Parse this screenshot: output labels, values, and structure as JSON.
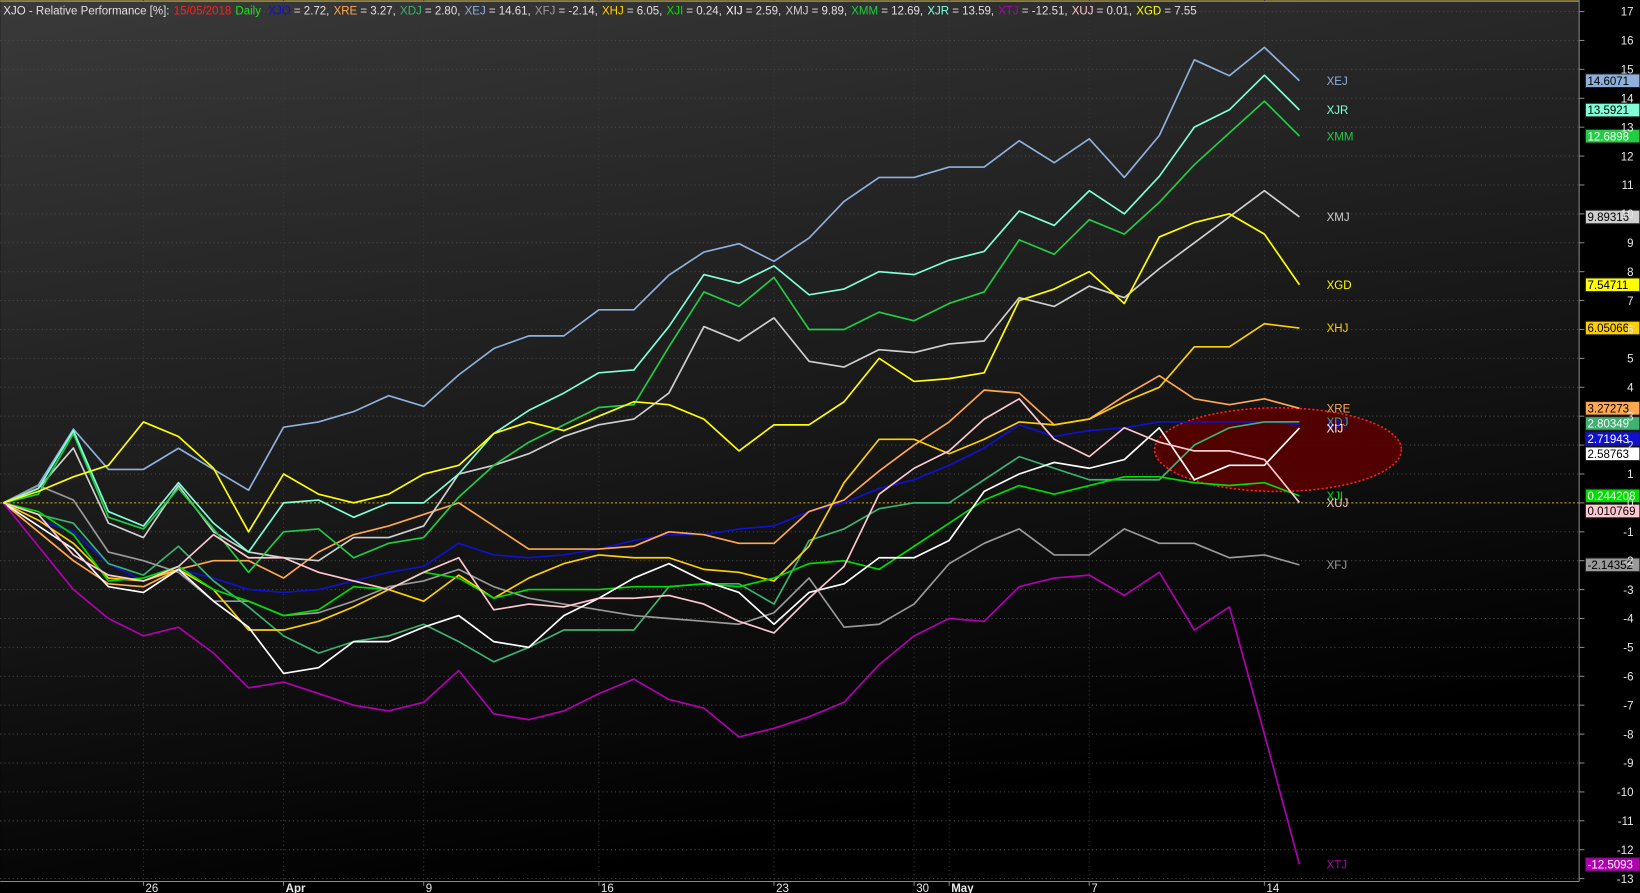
{
  "chart_data": {
    "type": "line",
    "title": "XJO - Relative Performance [%]:",
    "date": "15/05/2018",
    "interval": "Daily",
    "categories": [
      null,
      null,
      null,
      null,
      "26",
      null,
      null,
      null,
      "Apr",
      null,
      null,
      null,
      "9",
      null,
      null,
      null,
      null,
      "16",
      null,
      null,
      null,
      null,
      "23",
      null,
      null,
      null,
      "30",
      "May",
      null,
      null,
      null,
      "7",
      null,
      null,
      null,
      null,
      "14",
      null
    ],
    "ylim": [
      -13.1,
      17.4
    ],
    "yticks": [
      -13,
      -12,
      -11,
      -10,
      -9,
      -8,
      -7,
      -6,
      -5,
      -4,
      -3,
      -2,
      -1,
      0,
      1,
      2,
      3,
      4,
      5,
      6,
      7,
      8,
      9,
      10,
      11,
      12,
      13,
      14,
      15,
      16,
      17
    ],
    "grid": true,
    "series": [
      {
        "name": "XJO",
        "color": "#1010d0",
        "legend_text": "= 2.72,",
        "values": [
          0,
          -0.6,
          -1.0,
          -2.1,
          -2.7,
          -2.3,
          -2.6,
          -3.0,
          -3.1,
          -3.0,
          -2.7,
          -2.4,
          -2.2,
          -1.4,
          -1.8,
          -1.9,
          -1.8,
          -1.6,
          -1.3,
          -1.1,
          -1.1,
          -0.9,
          -0.8,
          -0.3,
          0.0,
          0.5,
          0.8,
          1.3,
          1.9,
          2.7,
          2.3,
          2.5,
          2.6,
          2.8,
          2.8,
          2.8,
          2.8,
          2.71943
        ]
      },
      {
        "name": "XRE",
        "color": "#ffa850",
        "legend_text": "= 3.27,",
        "values": [
          0,
          -1.0,
          -2.0,
          -2.8,
          -2.9,
          -2.3,
          -2.0,
          -2.0,
          -2.6,
          -1.7,
          -1.1,
          -0.8,
          -0.4,
          0.0,
          -0.8,
          -1.6,
          -1.6,
          -1.6,
          -1.5,
          -1.0,
          -1.1,
          -1.4,
          -1.4,
          -0.3,
          0.1,
          1.1,
          2.0,
          2.8,
          3.9,
          3.8,
          2.7,
          2.9,
          3.7,
          4.4,
          3.6,
          3.4,
          3.6,
          3.27273
        ]
      },
      {
        "name": "XDJ",
        "color": "#3cb371",
        "legend_text": "= 2.80,",
        "values": [
          0,
          -0.4,
          -0.7,
          -2.1,
          -2.5,
          -1.5,
          -2.7,
          -3.6,
          -4.6,
          -5.2,
          -4.8,
          -4.6,
          -4.2,
          -4.8,
          -5.5,
          -5.0,
          -4.4,
          -4.4,
          -4.4,
          -2.9,
          -2.8,
          -2.8,
          -3.5,
          -1.3,
          -0.9,
          -0.2,
          0.0,
          0.0,
          0.8,
          1.6,
          1.2,
          0.8,
          0.8,
          0.8,
          2.0,
          2.6,
          2.8,
          2.80349
        ]
      },
      {
        "name": "XEJ",
        "color": "#8fb0dc",
        "legend_text": "= 14.61,",
        "values": [
          0,
          0.62,
          2.55,
          1.16,
          1.16,
          1.89,
          1.16,
          0.44,
          2.62,
          2.8,
          3.16,
          3.71,
          3.34,
          4.43,
          5.34,
          5.78,
          5.78,
          6.68,
          6.68,
          7.88,
          8.68,
          8.97,
          8.36,
          9.16,
          10.43,
          11.26,
          11.26,
          11.62,
          11.62,
          12.53,
          11.77,
          12.6,
          11.26,
          12.71,
          15.33,
          14.78,
          15.76,
          14.6071
        ]
      },
      {
        "name": "XFJ",
        "color": "#9a9a9a",
        "legend_text": "= -2.14,",
        "values": [
          0,
          0.6,
          0.1,
          -1.7,
          -2.0,
          -2.4,
          -3.4,
          -3.4,
          -3.9,
          -3.8,
          -3.4,
          -2.9,
          -2.7,
          -2.3,
          -2.9,
          -3.3,
          -3.5,
          -3.7,
          -3.9,
          -4.0,
          -4.1,
          -4.2,
          -3.8,
          -2.6,
          -4.3,
          -4.2,
          -3.5,
          -2.1,
          -1.4,
          -0.9,
          -1.8,
          -1.8,
          -0.9,
          -1.4,
          -1.4,
          -1.9,
          -1.8,
          -2.14352
        ]
      },
      {
        "name": "XHJ",
        "color": "#ffd000",
        "legend_text": "= 6.05,",
        "values": [
          0,
          -0.6,
          -1.4,
          -2.6,
          -2.7,
          -2.3,
          -3.0,
          -4.4,
          -4.4,
          -4.1,
          -3.6,
          -3.0,
          -3.4,
          -2.5,
          -3.3,
          -2.6,
          -2.1,
          -1.8,
          -1.9,
          -1.9,
          -2.3,
          -2.4,
          -2.7,
          -1.5,
          0.7,
          2.2,
          2.2,
          1.7,
          2.2,
          2.8,
          2.7,
          2.9,
          3.5,
          4.0,
          5.4,
          5.4,
          6.2,
          6.05066
        ]
      },
      {
        "name": "XJI",
        "color": "#00dd00",
        "legend_text": "= 0.24,",
        "values": [
          0,
          -0.3,
          -1.1,
          -2.7,
          -2.6,
          -2.2,
          -3.0,
          -3.4,
          -3.9,
          -3.7,
          -2.9,
          -3.0,
          -2.4,
          -2.6,
          -3.3,
          -3.0,
          -3.0,
          -3.0,
          -2.9,
          -2.9,
          -2.8,
          -2.9,
          -2.6,
          -2.1,
          -2.0,
          -2.3,
          -1.5,
          -0.7,
          0.1,
          0.6,
          0.3,
          0.6,
          0.9,
          0.9,
          0.7,
          0.6,
          0.7,
          0.244208
        ]
      },
      {
        "name": "XIJ",
        "color": "#ffffff",
        "legend_text": "= 2.59,",
        "values": [
          0,
          -0.8,
          -1.6,
          -2.9,
          -3.1,
          -2.3,
          -3.4,
          -4.3,
          -5.9,
          -5.7,
          -4.8,
          -4.8,
          -4.3,
          -3.9,
          -4.8,
          -5.0,
          -3.9,
          -3.3,
          -2.6,
          -2.1,
          -2.7,
          -3.1,
          -4.2,
          -3.1,
          -2.8,
          -1.9,
          -1.9,
          -1.3,
          0.4,
          1.0,
          1.4,
          1.2,
          1.5,
          2.6,
          0.8,
          1.3,
          1.3,
          2.58763
        ]
      },
      {
        "name": "XMJ",
        "color": "#cfcfcf",
        "legend_text": "= 9.89,",
        "values": [
          0,
          0.5,
          1.9,
          -0.7,
          -1.2,
          0.6,
          -1.0,
          -1.7,
          -1.9,
          -2.0,
          -1.2,
          -1.2,
          -0.8,
          1.0,
          1.3,
          1.7,
          2.3,
          2.7,
          2.9,
          3.8,
          6.1,
          5.6,
          6.4,
          4.9,
          4.7,
          5.3,
          5.2,
          5.5,
          5.6,
          7.1,
          6.8,
          7.5,
          7.1,
          8.1,
          9.0,
          9.9,
          10.8,
          9.89316
        ]
      },
      {
        "name": "XMM",
        "color": "#22cc44",
        "legend_text": "= 12.69,",
        "values": [
          0,
          0.3,
          2.4,
          -0.5,
          -0.9,
          0.5,
          -0.9,
          -2.4,
          -1.0,
          -0.9,
          -1.9,
          -1.4,
          -1.2,
          0.2,
          1.3,
          2.1,
          2.7,
          3.3,
          3.4,
          5.4,
          7.3,
          6.8,
          7.8,
          6.0,
          6.0,
          6.6,
          6.3,
          6.9,
          7.3,
          9.1,
          8.6,
          9.8,
          9.3,
          10.4,
          11.7,
          12.8,
          13.9,
          12.6898
        ]
      },
      {
        "name": "XJR",
        "color": "#80ffd8",
        "legend_text": "= 13.59,",
        "values": [
          0,
          0.5,
          2.5,
          -0.3,
          -0.8,
          0.7,
          -0.7,
          -1.7,
          0.0,
          0.1,
          -0.5,
          0.0,
          0.0,
          1.0,
          2.4,
          3.2,
          3.8,
          4.5,
          4.6,
          6.1,
          7.9,
          7.6,
          8.2,
          7.2,
          7.4,
          8.0,
          7.9,
          8.4,
          8.7,
          10.1,
          9.6,
          10.8,
          10.0,
          11.3,
          13.0,
          13.6,
          14.8,
          13.5921
        ]
      },
      {
        "name": "XTJ",
        "color": "#b000b0",
        "legend_text": "= -12.51,",
        "values": [
          0,
          -1.5,
          -3.0,
          -4.0,
          -4.6,
          -4.3,
          -5.2,
          -6.4,
          -6.2,
          -6.6,
          -7.0,
          -7.2,
          -6.9,
          -5.8,
          -7.3,
          -7.5,
          -7.2,
          -6.6,
          -6.1,
          -6.8,
          -7.1,
          -8.1,
          -7.8,
          -7.4,
          -6.9,
          -5.6,
          -4.6,
          -4.0,
          -4.1,
          -2.9,
          -2.6,
          -2.5,
          -3.2,
          -2.4,
          -4.4,
          -3.6,
          -8.0,
          -12.5093
        ]
      },
      {
        "name": "XUJ",
        "color": "#ffc8d0",
        "legend_text": "= 0.01,",
        "values": [
          0,
          -0.4,
          -1.8,
          -2.5,
          -2.7,
          -2.2,
          -1.1,
          -1.9,
          -1.9,
          -2.4,
          -2.7,
          -3.0,
          -2.4,
          -1.9,
          -3.7,
          -3.5,
          -3.6,
          -3.3,
          -3.3,
          -3.2,
          -3.5,
          -4.1,
          -4.5,
          -3.3,
          -2.2,
          0.3,
          1.2,
          1.8,
          2.9,
          3.6,
          2.2,
          1.6,
          2.6,
          2.1,
          1.8,
          1.8,
          1.5,
          0.010769
        ]
      },
      {
        "name": "XGD",
        "color": "#ffff00",
        "legend_text": "= 7.55",
        "values": [
          0,
          0.4,
          0.9,
          1.3,
          2.8,
          2.3,
          1.2,
          -1.0,
          1.0,
          0.3,
          0.0,
          0.3,
          1.0,
          1.3,
          2.4,
          2.8,
          2.5,
          3.0,
          3.5,
          3.4,
          2.9,
          1.8,
          2.7,
          2.7,
          3.5,
          5.0,
          4.2,
          4.3,
          4.5,
          7.0,
          7.4,
          8.0,
          6.9,
          9.2,
          9.7,
          10.0,
          9.3,
          7.54711
        ]
      }
    ]
  }
}
